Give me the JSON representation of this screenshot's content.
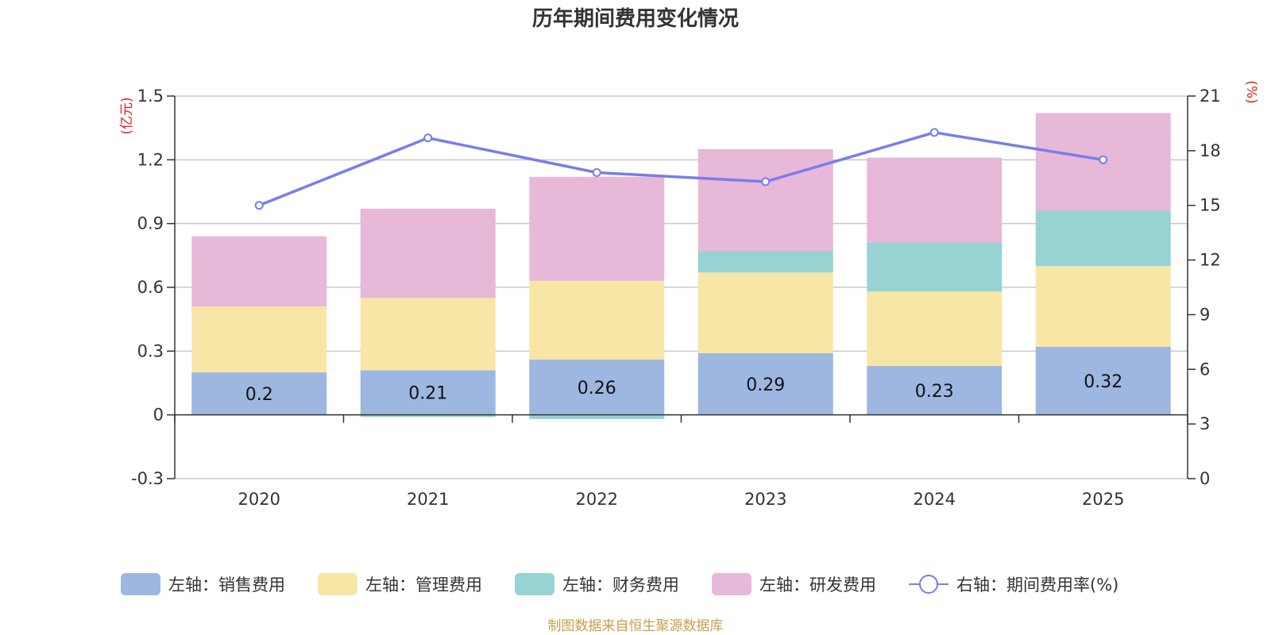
{
  "chart_data": {
    "type": "bar",
    "title": "历年期间费用变化情况",
    "categories": [
      "2020",
      "2021",
      "2022",
      "2023",
      "2024",
      "2025"
    ],
    "left_axis": {
      "unit": "(亿元)",
      "ylim": [
        -0.3,
        1.5
      ],
      "ticks": [
        -0.3,
        0,
        0.3,
        0.6,
        0.9,
        1.2,
        1.5
      ],
      "tick_labels": [
        "-0.3",
        "0",
        "0.3",
        "0.6",
        "0.9",
        "1.2",
        "1.5"
      ]
    },
    "right_axis": {
      "unit": "(%)",
      "ylim": [
        0,
        21
      ],
      "ticks": [
        0,
        3,
        6,
        9,
        12,
        15,
        18,
        21
      ],
      "tick_labels": [
        "0",
        "3",
        "6",
        "9",
        "12",
        "15",
        "18",
        "21"
      ]
    },
    "series": [
      {
        "name": "左轴：销售费用",
        "type": "bar",
        "axis": "left",
        "color": "#9db7e1",
        "values": [
          0.2,
          0.21,
          0.26,
          0.29,
          0.23,
          0.32
        ],
        "labels": [
          "0.2",
          "0.21",
          "0.26",
          "0.29",
          "0.23",
          "0.32"
        ]
      },
      {
        "name": "左轴：管理费用",
        "type": "bar",
        "axis": "left",
        "color": "#f8e6a6",
        "values": [
          0.31,
          0.34,
          0.37,
          0.38,
          0.35,
          0.38
        ]
      },
      {
        "name": "左轴：财务费用",
        "type": "bar",
        "axis": "left",
        "color": "#97d3d3",
        "values": [
          0.0,
          -0.01,
          -0.02,
          0.1,
          0.23,
          0.26
        ]
      },
      {
        "name": "左轴：研发费用",
        "type": "bar",
        "axis": "left",
        "color": "#e7b8d8",
        "values": [
          0.33,
          0.42,
          0.49,
          0.48,
          0.4,
          0.46
        ]
      },
      {
        "name": "右轴：期间费用率(%)",
        "type": "line",
        "axis": "right",
        "color": "#7a7ced",
        "values": [
          15.0,
          18.7,
          16.8,
          16.3,
          19.0,
          17.5
        ]
      }
    ],
    "legend_position": "bottom",
    "grid": true
  },
  "source_text": "制图数据来自恒生聚源数据库"
}
